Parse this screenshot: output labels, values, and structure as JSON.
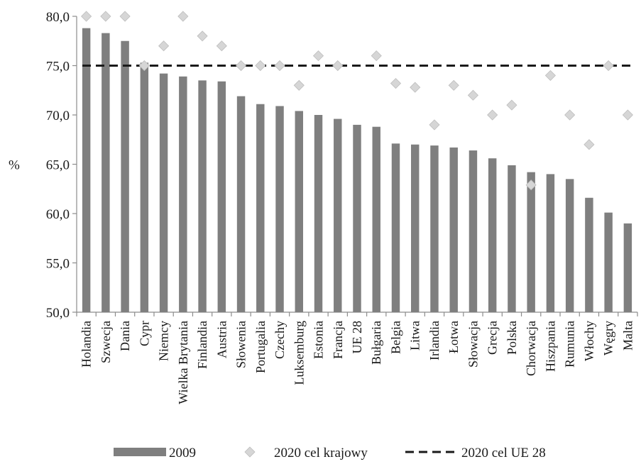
{
  "chart_data": {
    "type": "bar",
    "ylabel": "%",
    "ylim": [
      50,
      80
    ],
    "yticks": [
      "50,0",
      "55,0",
      "60,0",
      "65,0",
      "70,0",
      "75,0",
      "80,0"
    ],
    "ytick_values": [
      50,
      55,
      60,
      65,
      70,
      75,
      80
    ],
    "grid": false,
    "legend_position": "bottom",
    "categories": [
      "Holandia",
      "Szwecja",
      "Dania",
      "Cypr",
      "Niemcy",
      "Wielka Brytania",
      "Finlandia",
      "Austria",
      "Słowenia",
      "Portugalia",
      "Czechy",
      "Luksemburg",
      "Estonia",
      "Francja",
      "UE 28",
      "Bułgaria",
      "Belgia",
      "Litwa",
      "Irlandia",
      "Łotwa",
      "Słowacja",
      "Grecja",
      "Polska",
      "Chorwacja",
      "Hiszpania",
      "Rumunia",
      "Włochy",
      "Węgry",
      "Malta"
    ],
    "series": [
      {
        "name": "2009",
        "kind": "bar",
        "color": "#7f7f7f",
        "values": [
          78.8,
          78.3,
          77.5,
          75.3,
          74.2,
          73.9,
          73.5,
          73.4,
          71.9,
          71.1,
          70.9,
          70.4,
          70.0,
          69.6,
          69.0,
          68.8,
          67.1,
          67.0,
          66.9,
          66.7,
          66.4,
          65.6,
          64.9,
          64.2,
          64.0,
          63.5,
          61.6,
          60.1,
          59.0
        ]
      },
      {
        "name": "2020 cel krajowy",
        "kind": "marker",
        "color": "#d6d6d6",
        "values": [
          80,
          80,
          80,
          75,
          77,
          80,
          78,
          77,
          75,
          75,
          75,
          73,
          76,
          75,
          null,
          76,
          73.2,
          72.8,
          69,
          73,
          72,
          70,
          71,
          62.9,
          74,
          70,
          67,
          75,
          70
        ]
      },
      {
        "name": "2020 cel UE 28",
        "kind": "reference-line",
        "color": "#1a1a1a",
        "value": 75
      }
    ]
  }
}
